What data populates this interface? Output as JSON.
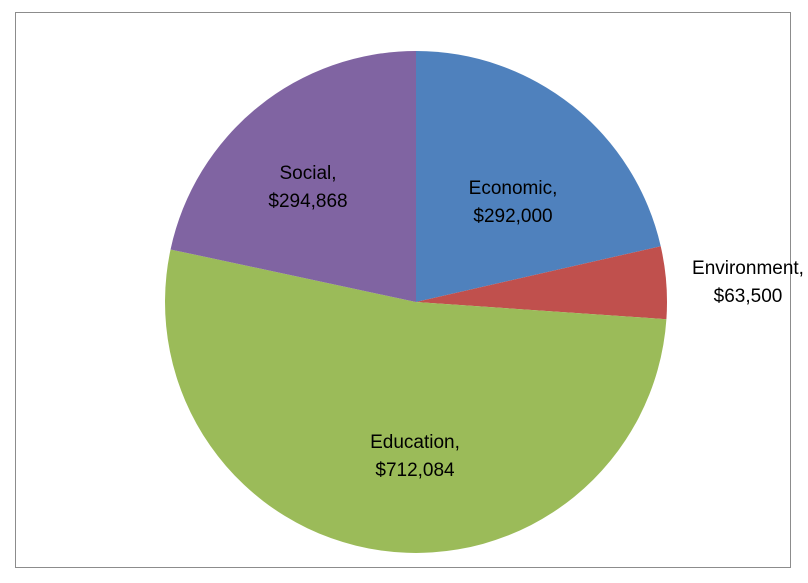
{
  "chart_data": {
    "type": "pie",
    "title": "",
    "slices": [
      {
        "category": "Economic,",
        "value": 292000,
        "value_label": "$292,000",
        "color": "#4f81bd"
      },
      {
        "category": "Environment,",
        "value": 63500,
        "value_label": "$63,500",
        "color": "#c0504d"
      },
      {
        "category": "Education,",
        "value": 712084,
        "value_label": "$712,084",
        "color": "#9bbb59"
      },
      {
        "category": "Social,",
        "value": 294868,
        "value_label": "$294,868",
        "color": "#8064a2"
      }
    ],
    "start_angle_deg": 0,
    "direction": "clockwise",
    "legend": "none",
    "data_labels": "category and value"
  }
}
